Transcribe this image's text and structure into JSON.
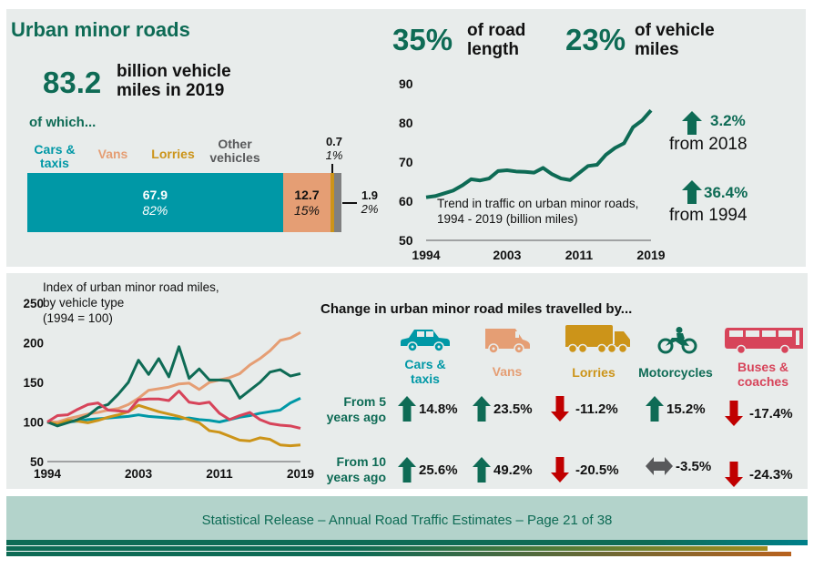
{
  "colors": {
    "brand_green": "#0e6b55",
    "cars": "#0098a6",
    "vans": "#e59e74",
    "lorries": "#cc9419",
    "motorcycles": "#0e6b55",
    "buses": "#d7445a",
    "other": "#808080",
    "down_red": "#c00000",
    "neutral_grey": "#58595b"
  },
  "summary": {
    "title": "Urban minor roads",
    "total_value": "83.2",
    "total_label_line1": "billion vehicle",
    "total_label_line2": "miles in 2019",
    "of_which": "of which...",
    "road_length_pct": "35%",
    "road_length_label_line1": "of road",
    "road_length_label_line2": "length",
    "vehicle_miles_pct": "23%",
    "vehicle_miles_label_line1": "of vehicle",
    "vehicle_miles_label_line2": "miles"
  },
  "breakdown": {
    "categories": [
      {
        "name_line1": "Cars &",
        "name_line2": "taxis",
        "value": "67.9",
        "pct": "82%",
        "share": 67.9
      },
      {
        "name_line1": "Vans",
        "name_line2": "",
        "value": "12.7",
        "pct": "15%",
        "share": 12.7
      },
      {
        "name_line1": "Lorries",
        "name_line2": "",
        "value": "0.7",
        "pct": "1%",
        "share": 0.7
      },
      {
        "name_line1": "Other",
        "name_line2": "vehicles",
        "value": "1.9",
        "pct": "2%",
        "share": 1.9
      }
    ]
  },
  "trend": {
    "change_2018": "3.2%",
    "change_2018_label": "from 2018",
    "change_1994": "36.4%",
    "change_1994_label": "from 1994"
  },
  "index_panel": {
    "change_title": "Change in urban minor road miles travelled by...",
    "vehicles": [
      {
        "key": "cars",
        "icon": "car-icon",
        "label_line1": "Cars &",
        "label_line2": "taxis"
      },
      {
        "key": "vans",
        "icon": "van-icon",
        "label_line1": "Vans",
        "label_line2": ""
      },
      {
        "key": "lorries",
        "icon": "lorry-icon",
        "label_line1": "Lorries",
        "label_line2": ""
      },
      {
        "key": "motorcycles",
        "icon": "motorcycle-icon",
        "label_line1": "Motorcycles",
        "label_line2": ""
      },
      {
        "key": "buses",
        "icon": "bus-icon",
        "label_line1": "Buses &",
        "label_line2": "coaches"
      }
    ],
    "rows": [
      {
        "label_line1": "From 5",
        "label_line2": "years ago",
        "changes": [
          {
            "value": "14.8%",
            "direction": "up"
          },
          {
            "value": "23.5%",
            "direction": "up"
          },
          {
            "value": "-11.2%",
            "direction": "down"
          },
          {
            "value": "15.2%",
            "direction": "up"
          },
          {
            "value": "-17.4%",
            "direction": "down"
          }
        ]
      },
      {
        "label_line1": "From 10",
        "label_line2": "years ago",
        "changes": [
          {
            "value": "25.6%",
            "direction": "up"
          },
          {
            "value": "49.2%",
            "direction": "up"
          },
          {
            "value": "-20.5%",
            "direction": "down"
          },
          {
            "value": "-3.5%",
            "direction": "flat"
          },
          {
            "value": "-24.3%",
            "direction": "down"
          }
        ]
      }
    ]
  },
  "footer": {
    "text": "Statistical Release – Annual Road Traffic Estimates – Page 21 of 38"
  },
  "chart_data": [
    {
      "type": "line",
      "title": "Trend in traffic on urban minor roads, 1994 - 2019  (billion miles)",
      "title_line1": "Trend in traffic on urban minor roads,",
      "title_line2": "1994 - 2019  (billion miles)",
      "xlabel": "",
      "ylabel": "",
      "x": [
        1994,
        1995,
        1996,
        1997,
        1998,
        1999,
        2000,
        2001,
        2002,
        2003,
        2004,
        2005,
        2006,
        2007,
        2008,
        2009,
        2010,
        2011,
        2012,
        2013,
        2014,
        2015,
        2016,
        2017,
        2018,
        2019
      ],
      "xticks": [
        "1994",
        "2003",
        "2011",
        "2019"
      ],
      "yticks": [
        "50",
        "60",
        "70",
        "80",
        "90"
      ],
      "ylim": [
        50,
        90
      ],
      "grid": false,
      "series": [
        {
          "name": "Urban minor roads traffic",
          "values": [
            61.0,
            61.3,
            62.0,
            62.7,
            64.0,
            65.6,
            65.3,
            65.8,
            67.7,
            67.9,
            67.6,
            67.5,
            67.3,
            68.5,
            66.9,
            65.8,
            65.4,
            67.2,
            69.0,
            69.3,
            71.9,
            73.6,
            74.8,
            78.9,
            80.6,
            83.2
          ]
        }
      ]
    },
    {
      "type": "line",
      "title_line1": "Index of urban minor road miles,",
      "title_line2": "by vehicle type",
      "title_line3": "(1994 = 100)",
      "xlabel": "",
      "ylabel": "",
      "x": [
        1994,
        1995,
        1996,
        1997,
        1998,
        1999,
        2000,
        2001,
        2002,
        2003,
        2004,
        2005,
        2006,
        2007,
        2008,
        2009,
        2010,
        2011,
        2012,
        2013,
        2014,
        2015,
        2016,
        2017,
        2018,
        2019
      ],
      "xticks": [
        "1994",
        "2003",
        "2011",
        "2019"
      ],
      "yticks": [
        "50",
        "100",
        "150",
        "200",
        "250"
      ],
      "ylim": [
        50,
        250
      ],
      "grid": false,
      "legend": "none",
      "series": [
        {
          "name": "Cars & taxis",
          "key": "cars",
          "values": [
            100,
            98,
            100,
            101,
            103,
            104,
            105,
            106,
            107,
            109,
            107,
            106,
            105,
            104,
            105,
            103,
            102,
            100,
            103,
            106,
            108,
            111,
            113,
            115,
            124,
            130
          ]
        },
        {
          "name": "Vans",
          "key": "vans",
          "values": [
            100,
            100,
            104,
            107,
            110,
            112,
            115,
            117,
            122,
            130,
            140,
            142,
            144,
            148,
            149,
            141,
            150,
            153,
            156,
            161,
            172,
            180,
            190,
            203,
            206,
            213
          ]
        },
        {
          "name": "Lorries",
          "key": "lorries",
          "values": [
            100,
            97,
            102,
            101,
            99,
            102,
            106,
            109,
            113,
            121,
            117,
            113,
            110,
            107,
            103,
            99,
            89,
            87,
            82,
            77,
            76,
            80,
            78,
            71,
            70,
            71
          ]
        },
        {
          "name": "Motorcycles",
          "key": "motorcycles",
          "values": [
            100,
            95,
            99,
            103,
            108,
            118,
            122,
            135,
            150,
            178,
            160,
            180,
            157,
            195,
            155,
            167,
            153,
            153,
            152,
            130,
            140,
            150,
            163,
            166,
            158,
            161
          ]
        },
        {
          "name": "Buses & coaches",
          "key": "buses",
          "values": [
            100,
            108,
            109,
            116,
            122,
            124,
            115,
            114,
            113,
            128,
            129,
            129,
            127,
            139,
            125,
            123,
            125,
            111,
            103,
            108,
            112,
            103,
            98,
            96,
            95,
            92
          ]
        }
      ]
    }
  ]
}
